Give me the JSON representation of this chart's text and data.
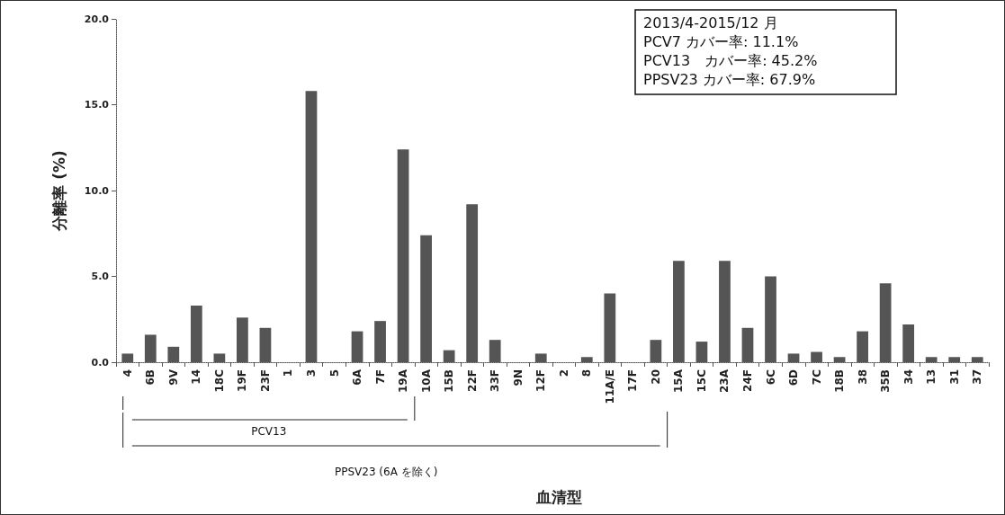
{
  "chart_data": {
    "type": "bar",
    "categories": [
      "4",
      "6B",
      "9V",
      "14",
      "18C",
      "19F",
      "23F",
      "1",
      "3",
      "5",
      "6A",
      "7F",
      "19A",
      "10A",
      "15B",
      "22F",
      "33F",
      "9N",
      "12F",
      "2",
      "8",
      "11A/E",
      "17F",
      "20",
      "15A",
      "15C",
      "23A",
      "24F",
      "6C",
      "6D",
      "7C",
      "18B",
      "38",
      "35B",
      "34",
      "13",
      "31",
      "37"
    ],
    "values": [
      0.5,
      1.6,
      0.9,
      3.3,
      0.5,
      2.6,
      2.0,
      0,
      15.8,
      0,
      1.8,
      2.4,
      12.4,
      7.4,
      0.7,
      9.2,
      1.3,
      0,
      0.5,
      0,
      0.3,
      4.0,
      0,
      1.3,
      5.9,
      1.2,
      5.9,
      2.0,
      5.0,
      0.5,
      0.6,
      0.3,
      1.8,
      4.6,
      2.2,
      0.3,
      0.3,
      0.3
    ],
    "color": "#555555",
    "ylim": [
      0,
      20
    ],
    "yticks": [
      {
        "value": 0,
        "label": "0.0"
      },
      {
        "value": 5,
        "label": "5.0"
      },
      {
        "value": 10,
        "label": "10.0"
      },
      {
        "value": 15,
        "label": "15.0"
      },
      {
        "value": 20,
        "label": "20.0"
      }
    ],
    "ylabel": "分離率 (%)",
    "grid": false,
    "annotations": [
      "2013/4-2015/12 月",
      "PCV7 カバー率: 11.1%",
      "PCV13　カバー率: 45.2%",
      "PPSV23 カバー率: 67.9%",
      "PCV13",
      "PPSV23 (6A を除く)",
      "血清型"
    ]
  }
}
